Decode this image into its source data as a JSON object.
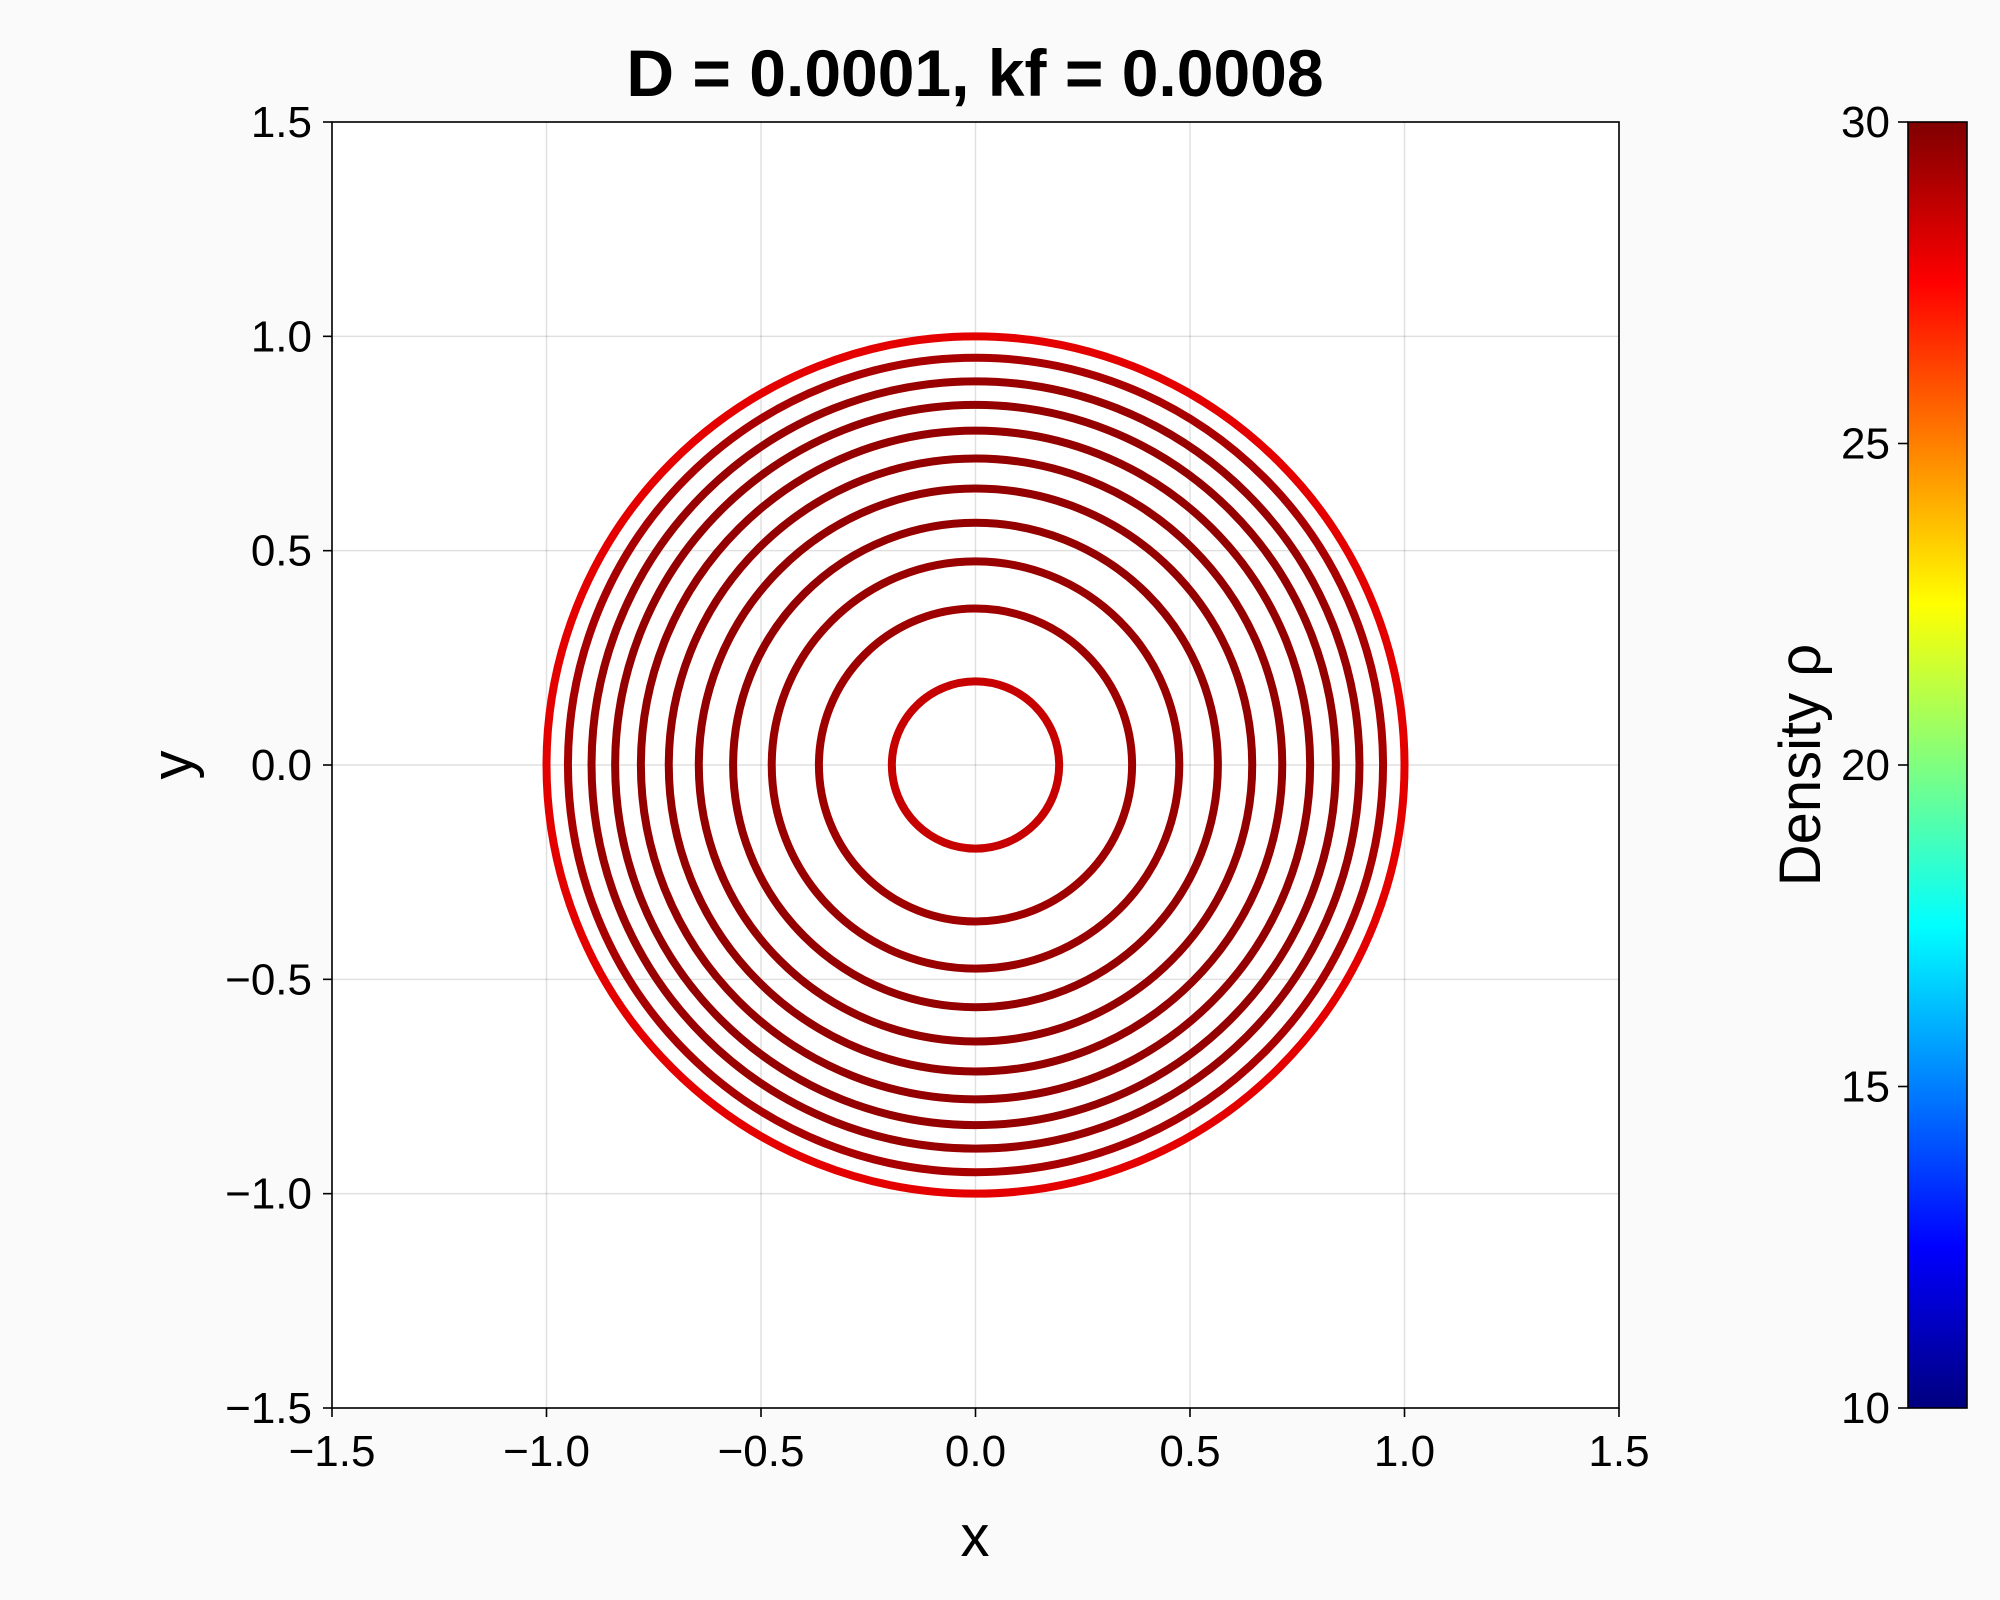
{
  "chart_data": {
    "type": "line",
    "title": "D = 0.0001, kf = 0.0008",
    "xlabel": "x",
    "ylabel": "y",
    "xlim": [
      -1.5,
      1.5
    ],
    "ylim": [
      -1.5,
      1.5
    ],
    "xticks": [
      -1.5,
      -1.0,
      -0.5,
      0.0,
      0.5,
      1.0,
      1.5
    ],
    "yticks": [
      -1.5,
      -1.0,
      -0.5,
      0.0,
      0.5,
      1.0,
      1.5
    ],
    "xtick_labels": [
      "−1.5",
      "−1.0",
      "−0.5",
      "0.0",
      "0.5",
      "1.0",
      "1.5"
    ],
    "ytick_labels": [
      "−1.5",
      "−1.0",
      "−0.5",
      "0.0",
      "0.5",
      "1.0",
      "1.5"
    ],
    "grid": true,
    "aspect": "equal",
    "series": [
      {
        "radius": 0.195,
        "density": 28.6
      },
      {
        "radius": 0.365,
        "density": 29.4
      },
      {
        "radius": 0.475,
        "density": 29.5
      },
      {
        "radius": 0.565,
        "density": 29.6
      },
      {
        "radius": 0.645,
        "density": 29.6
      },
      {
        "radius": 0.715,
        "density": 29.6
      },
      {
        "radius": 0.78,
        "density": 29.6
      },
      {
        "radius": 0.84,
        "density": 29.6
      },
      {
        "radius": 0.895,
        "density": 29.5
      },
      {
        "radius": 0.95,
        "density": 29.2
      },
      {
        "radius": 1.0,
        "density": 28.0
      }
    ],
    "colorbar": {
      "label": "Density ρ",
      "colormap": "jet",
      "limits": [
        10,
        30
      ],
      "ticks": [
        10,
        15,
        20,
        25,
        30
      ],
      "tick_labels": [
        "10",
        "15",
        "20",
        "25",
        "30"
      ]
    }
  }
}
